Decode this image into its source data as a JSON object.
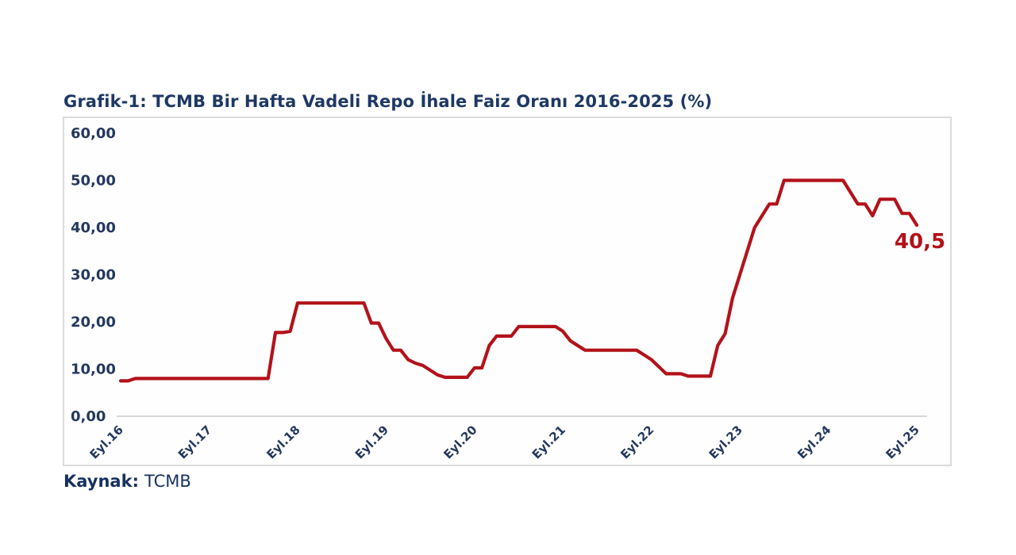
{
  "title": "Grafik-1: TCMB Bir Hafta Vadeli Repo İhale Faiz Oranı 2016-2025 (%)",
  "source": {
    "label": "Kaynak:",
    "value": "TCMB"
  },
  "colors": {
    "title_navy": "#1F3864",
    "tick_navy": "#24385E",
    "line_red": "#B3121A",
    "frame_gray": "#DBDBDB",
    "axis_gray": "#D8D8D8"
  },
  "chart_data": {
    "type": "line",
    "title": "Grafik-1: TCMB Bir Hafta Vadeli Repo İhale Faiz Oranı 2016-2025 (%)",
    "xlabel": "",
    "ylabel": "",
    "ylim": [
      0,
      60
    ],
    "grid": "x-axis-line-only",
    "legend": "none",
    "x_tick_labels": [
      "Eyl.16",
      "Eyl.17",
      "Eyl.18",
      "Eyl.19",
      "Eyl.20",
      "Eyl.21",
      "Eyl.22",
      "Eyl.23",
      "Eyl.24",
      "Eyl.25"
    ],
    "y_ticks": [
      {
        "value": 0,
        "label": "0,00"
      },
      {
        "value": 10,
        "label": "10,00"
      },
      {
        "value": 20,
        "label": "20,00"
      },
      {
        "value": 30,
        "label": "30,00"
      },
      {
        "value": 40,
        "label": "40,00"
      },
      {
        "value": 50,
        "label": "50,00"
      },
      {
        "value": 60,
        "label": "60,00"
      }
    ],
    "series": [
      {
        "name": "TCMB Bir Hafta Vadeli Repo İhale Faiz Oranı (%)",
        "x_start": "2016-09",
        "x_interval": "monthly",
        "values": [
          7.5,
          7.5,
          8,
          8,
          8,
          8,
          8,
          8,
          8,
          8,
          8,
          8,
          8,
          8,
          8,
          8,
          8,
          8,
          8,
          8,
          8,
          17.75,
          17.75,
          18,
          24,
          24,
          24,
          24,
          24,
          24,
          24,
          24,
          24,
          24,
          19.75,
          19.75,
          16.5,
          14,
          14,
          12,
          11.25,
          10.75,
          9.75,
          8.75,
          8.25,
          8.25,
          8.25,
          8.25,
          10.25,
          10.25,
          15,
          17,
          17,
          17,
          19,
          19,
          19,
          19,
          19,
          19,
          18,
          16,
          15,
          14,
          14,
          14,
          14,
          14,
          14,
          14,
          14,
          13,
          12,
          10.5,
          9,
          9,
          9,
          8.5,
          8.5,
          8.5,
          8.5,
          15,
          17.5,
          25,
          30,
          35,
          40,
          42.5,
          45,
          45,
          50,
          50,
          50,
          50,
          50,
          50,
          50,
          50,
          50,
          47.5,
          45,
          45,
          42.5,
          46,
          46,
          46,
          43,
          43,
          40.5
        ]
      }
    ],
    "annotation": {
      "text": "40,5",
      "value": 40.5,
      "date": "2025-09",
      "position": "end-of-line"
    }
  }
}
